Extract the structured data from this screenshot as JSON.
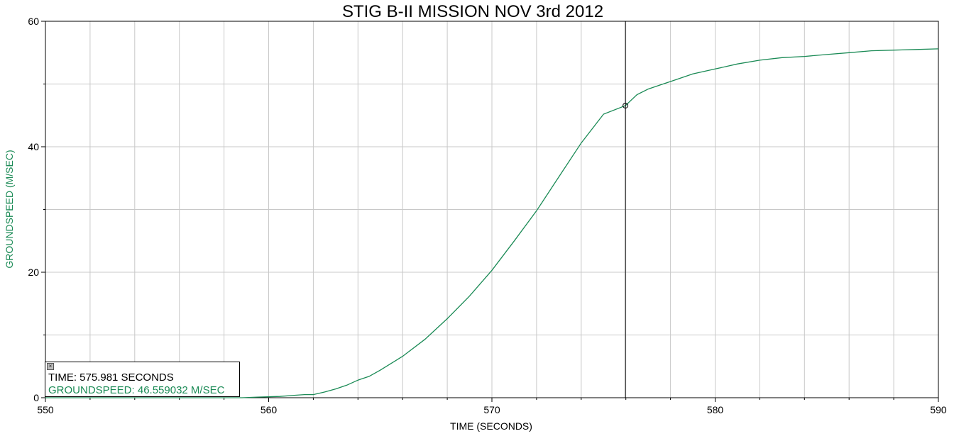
{
  "chart_data": {
    "type": "line",
    "title": "STIG B-II MISSION NOV 3rd 2012",
    "xlabel": "TIME (SECONDS)",
    "ylabel": "GROUNDSPEED (M/SEC)",
    "xlim": [
      550,
      590
    ],
    "ylim": [
      0,
      60
    ],
    "xticks": [
      550,
      560,
      570,
      580,
      590
    ],
    "yticks": [
      0,
      20,
      40,
      60
    ],
    "grid": true,
    "series_color": "#1a8a55",
    "series": [
      {
        "x": [
          550,
          555,
          558.8,
          559.5,
          560.5,
          561.2,
          561.6,
          562.0,
          562.5,
          563.0,
          563.5,
          564.0,
          564.5,
          565.0,
          566.0,
          567.0,
          568.0,
          569.0,
          570.0,
          571.0,
          572.0,
          573.0,
          574.0,
          575.0,
          575.981,
          576.5,
          577.0,
          577.5,
          578.0,
          579.0,
          580.0,
          581.0,
          582.0,
          583.0,
          584.0,
          585.0,
          586.0,
          587.0,
          588.0,
          589.0,
          590.0
        ],
        "y": [
          0,
          0,
          0,
          0.1,
          0.2,
          0.4,
          0.5,
          0.5,
          0.9,
          1.4,
          2.0,
          2.8,
          3.4,
          4.4,
          6.6,
          9.3,
          12.6,
          16.2,
          20.3,
          25.0,
          29.8,
          35.2,
          40.6,
          45.2,
          46.559,
          48.3,
          49.2,
          49.8,
          50.4,
          51.6,
          52.4,
          53.2,
          53.8,
          54.2,
          54.4,
          54.7,
          55.0,
          55.3,
          55.4,
          55.5,
          55.6
        ]
      }
    ],
    "cursor": {
      "x": 575.981,
      "y": 46.559032
    }
  },
  "tooltip": {
    "time_line": "TIME: 575.981 SECONDS",
    "speed_line": "GROUNDSPEED: 46.559032 M/SEC"
  }
}
